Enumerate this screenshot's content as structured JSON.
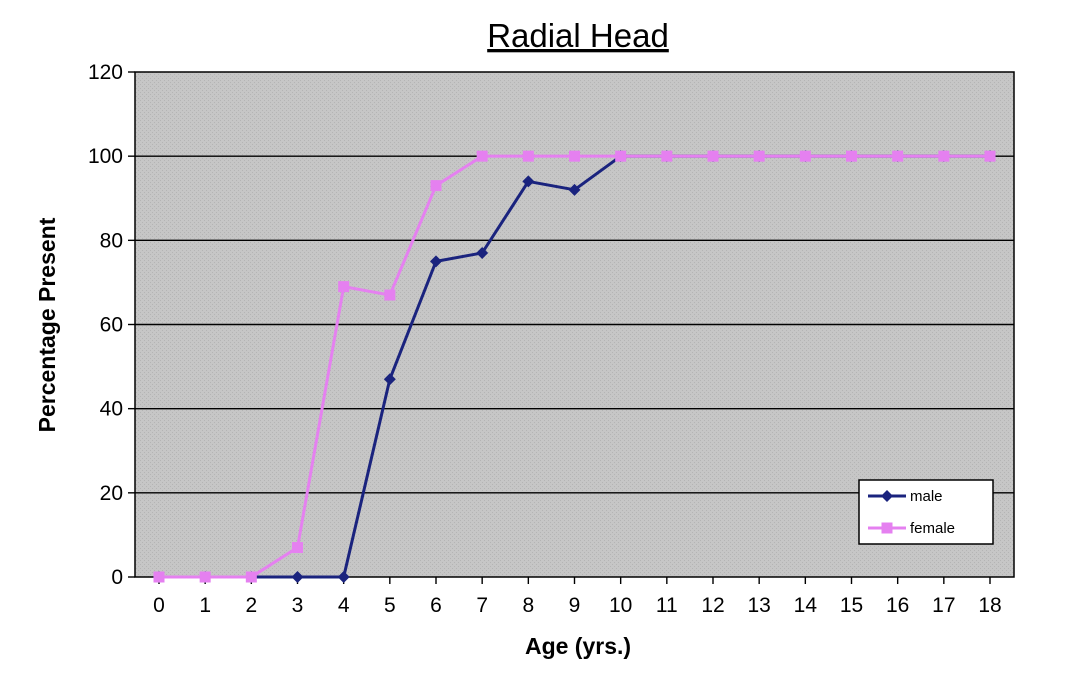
{
  "chart_data": {
    "type": "line",
    "title": "Radial Head",
    "xlabel": "Age (yrs.)",
    "ylabel": "Percentage Present",
    "x": [
      0,
      1,
      2,
      3,
      4,
      5,
      6,
      7,
      8,
      9,
      10,
      11,
      12,
      13,
      14,
      15,
      16,
      17,
      18
    ],
    "xlim": [
      0,
      18
    ],
    "ylim": [
      0,
      120
    ],
    "yticks": [
      0,
      20,
      40,
      60,
      80,
      100,
      120
    ],
    "grid": true,
    "legend_position": "bottom-right",
    "series": [
      {
        "name": "male",
        "color": "#1a237e",
        "marker": "diamond",
        "values": [
          0,
          0,
          0,
          0,
          0,
          47,
          75,
          77,
          94,
          92,
          100,
          100,
          100,
          100,
          100,
          100,
          100,
          100,
          100
        ]
      },
      {
        "name": "female",
        "color": "#e580f0",
        "marker": "square",
        "values": [
          0,
          0,
          0,
          7,
          69,
          67,
          93,
          100,
          100,
          100,
          100,
          100,
          100,
          100,
          100,
          100,
          100,
          100,
          100
        ]
      }
    ]
  }
}
